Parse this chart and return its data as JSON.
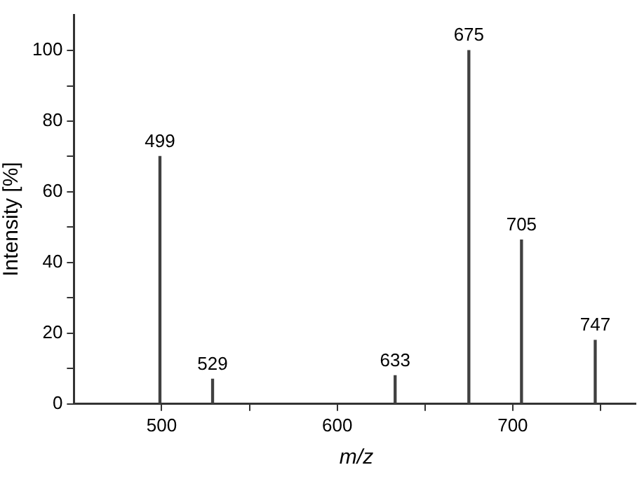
{
  "chart_data": {
    "type": "bar",
    "xlabel": "m/z",
    "ylabel": "Intensity [%]",
    "x": [
      499,
      529,
      633,
      675,
      705,
      747
    ],
    "values": [
      70,
      7,
      8,
      100,
      46.4,
      18
    ],
    "annotations": [
      {
        "text": "499",
        "x": 499,
        "y": 70
      },
      {
        "text": "529",
        "x": 529,
        "y": 7
      },
      {
        "text": "633",
        "x": 633,
        "y": 8
      },
      {
        "text": "675",
        "x": 675,
        "y": 100
      },
      {
        "text": "705",
        "x": 705,
        "y": 46.4
      },
      {
        "text": "747",
        "x": 747,
        "y": 18
      }
    ],
    "color": "#404040",
    "xlim": [
      450,
      770
    ],
    "xticks": [
      500,
      {
        "value": 550,
        "label": null
      },
      600,
      {
        "value": 650,
        "label": null
      },
      700,
      {
        "value": 750,
        "label": null
      }
    ],
    "ylim": [
      0,
      110
    ],
    "yticks": [
      0,
      {
        "value": 10,
        "label": null
      },
      20,
      {
        "value": 30,
        "label": null
      },
      40,
      {
        "value": 50,
        "label": null
      },
      60,
      {
        "value": 70,
        "label": null
      },
      80,
      {
        "value": 90,
        "label": null
      },
      100
    ],
    "grid": false,
    "legend": false
  }
}
